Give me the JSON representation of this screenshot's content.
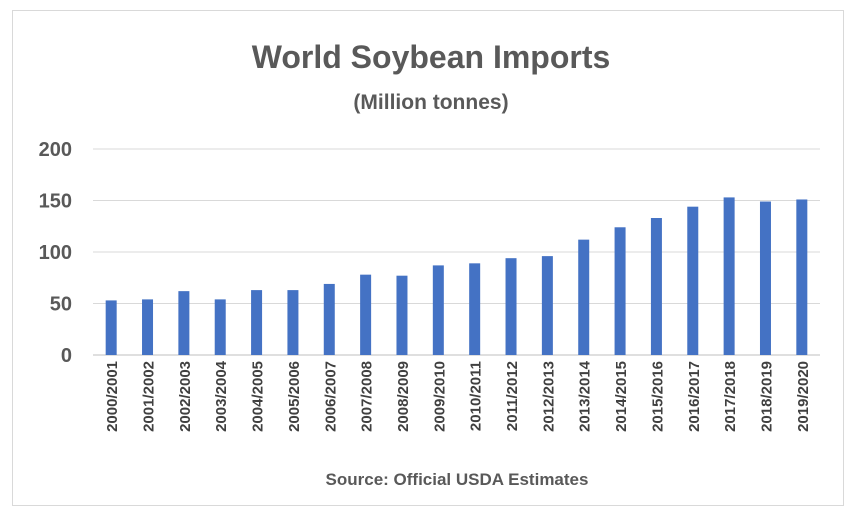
{
  "chart_data": {
    "type": "bar",
    "title": "World Soybean Imports",
    "subtitle": "(Million tonnes)",
    "source": "Source: Official USDA Estimates",
    "xlabel": "",
    "ylabel": "",
    "ylim": [
      0,
      200
    ],
    "yticks": [
      "0",
      "50",
      "100",
      "150",
      "200"
    ],
    "grid": true,
    "bar_color": "#4472C4",
    "categories": [
      "2000/2001",
      "2001/2002",
      "2002/2003",
      "2003/2004",
      "2004/2005",
      "2005/2006",
      "2006/2007",
      "2007/2008",
      "2008/2009",
      "2009/2010",
      "2010/2011",
      "2011/2012",
      "2012/2013",
      "2013/2014",
      "2014/2015",
      "2015/2016",
      "2016/2017",
      "2017/2018",
      "2018/2019",
      "2019/2020"
    ],
    "values": [
      53,
      54,
      62,
      54,
      63,
      63,
      69,
      78,
      77,
      87,
      89,
      94,
      96,
      112,
      124,
      133,
      144,
      153,
      149,
      151
    ]
  }
}
